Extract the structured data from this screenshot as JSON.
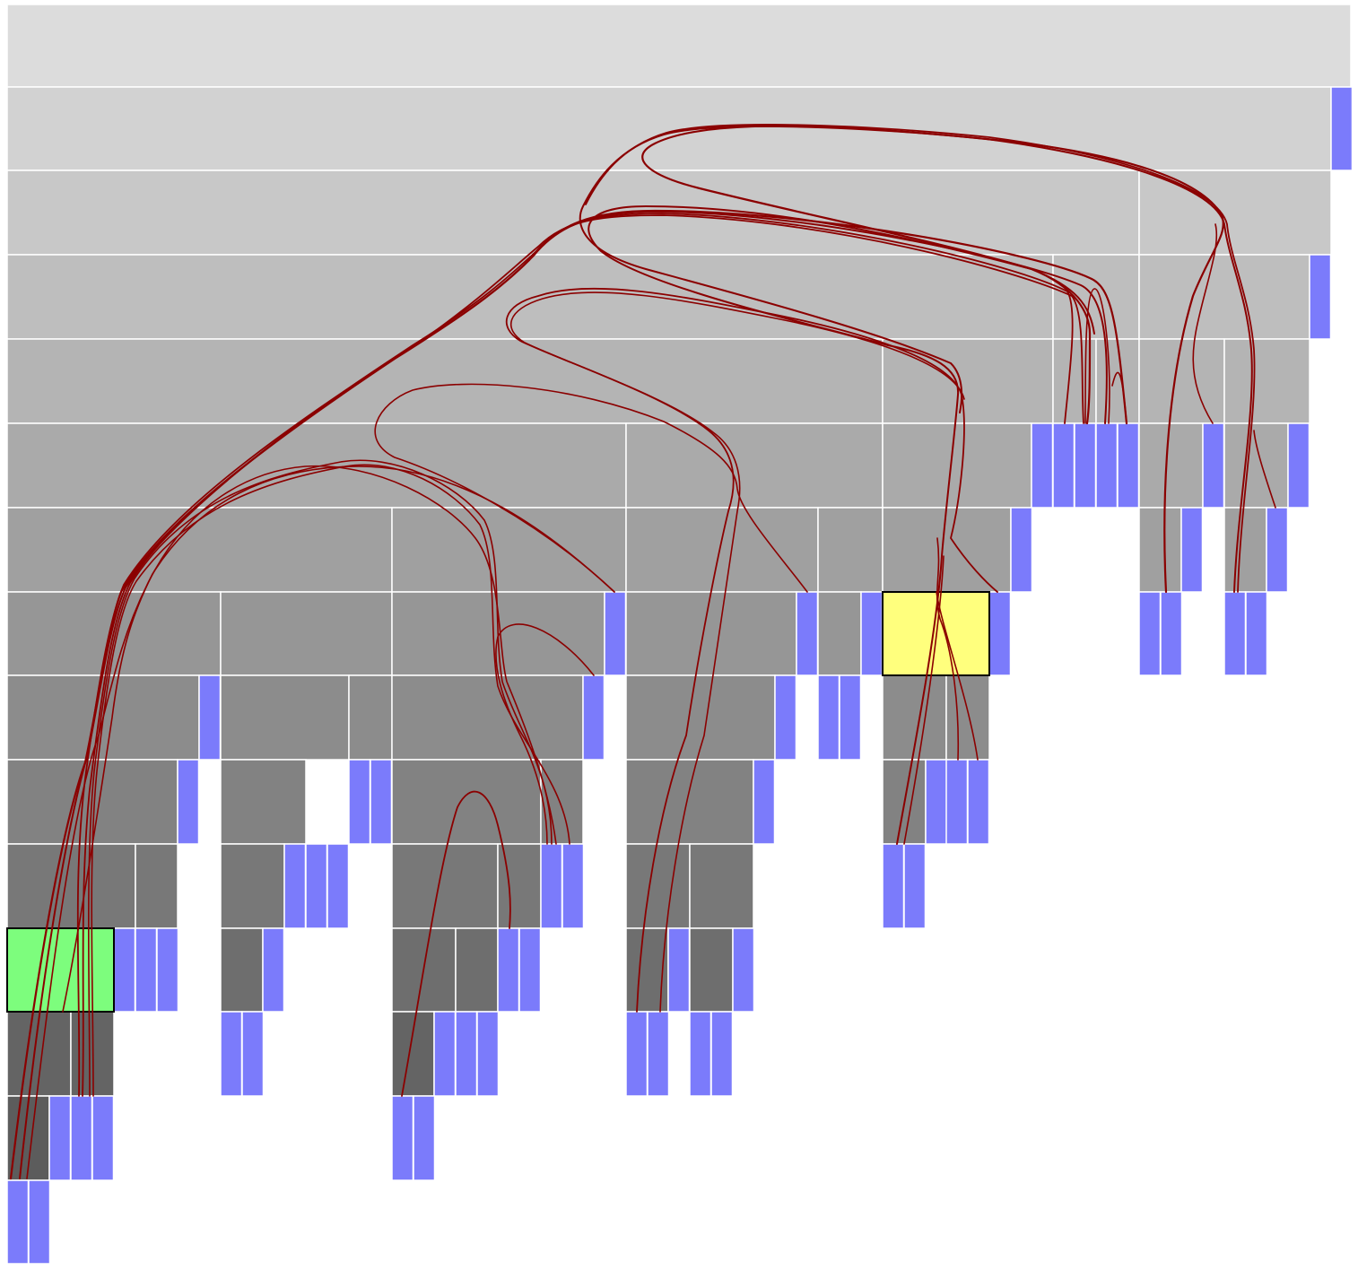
{
  "diagram": {
    "type": "icicle-with-hierarchical-edge-bundles",
    "colors": {
      "background": "#ffffff",
      "cell_border": "#ffffff",
      "leaf": "#7b7bfb",
      "highlight_source": "#7dfd7d",
      "highlight_target": "#ffff7d",
      "edge": "#8b0000",
      "depth_gray_top": "#dcdcdc",
      "depth_gray_bottom": "#5c5c5c"
    },
    "levels": 15,
    "highlighted": [
      "source-node",
      "target-node"
    ]
  }
}
